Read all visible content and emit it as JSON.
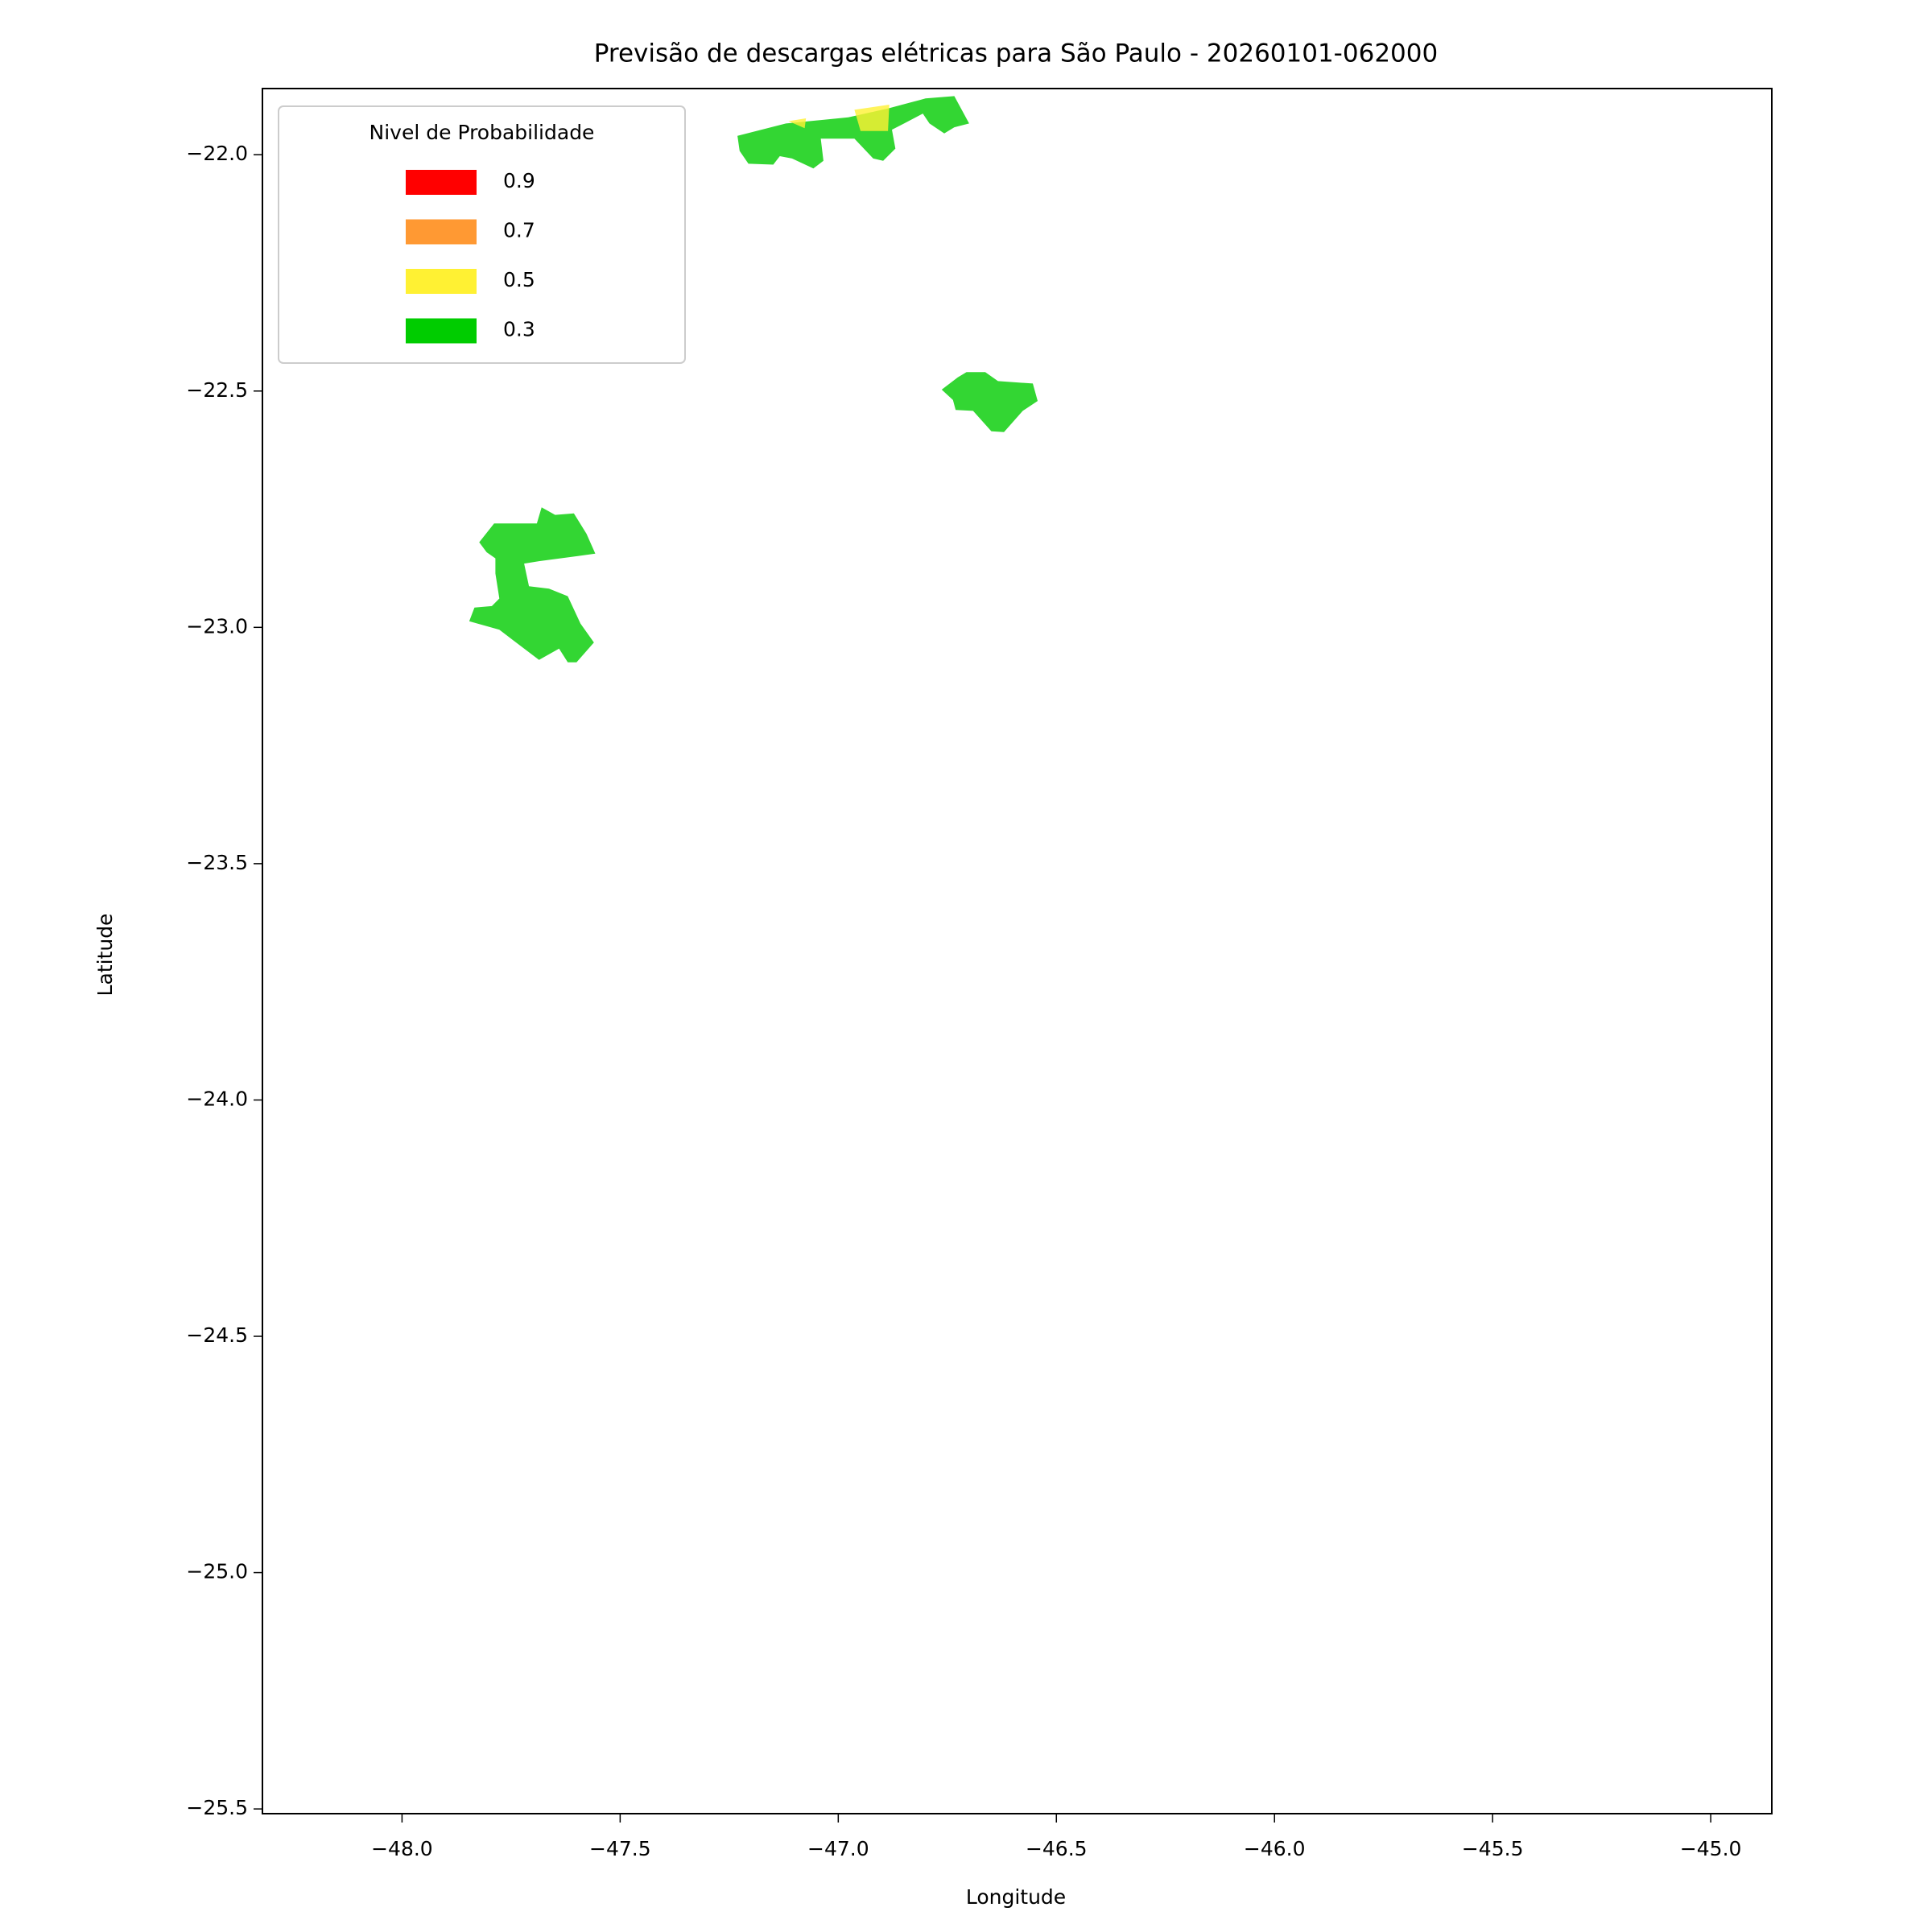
{
  "chart_data": {
    "type": "polygon",
    "title": "Previsão de descargas elétricas para São Paulo - 20260101-062000",
    "x_label": "Longitude",
    "y_label": "Latitude",
    "xlim": [
      -48.32,
      -44.86
    ],
    "ylim": [
      -25.51,
      -21.86
    ],
    "xticks": [
      {
        "value": -48,
        "label": "−48.0"
      },
      {
        "value": -47.5,
        "label": "−47.5"
      },
      {
        "value": -47,
        "label": "−47.0"
      },
      {
        "value": -46.5,
        "label": "−46.5"
      },
      {
        "value": -46,
        "label": "−46.0"
      },
      {
        "value": -45.5,
        "label": "−45.5"
      },
      {
        "value": -45,
        "label": "−45.0"
      }
    ],
    "yticks": [
      {
        "value": -22,
        "label": "−22.0"
      },
      {
        "value": -22.5,
        "label": "−22.5"
      },
      {
        "value": -23,
        "label": "−23.0"
      },
      {
        "value": -23.5,
        "label": "−23.5"
      },
      {
        "value": -24,
        "label": "−24.0"
      },
      {
        "value": -24.5,
        "label": "−24.5"
      },
      {
        "value": -25,
        "label": "−25.0"
      },
      {
        "value": -25.5,
        "label": "−25.5"
      }
    ],
    "legend_title": "Nivel de Probabilidade",
    "legend": "upper left",
    "fill_opacity": 0.8,
    "series": [
      {
        "name": "0.9",
        "color": "#ff0000",
        "polygons": []
      },
      {
        "name": "0.7",
        "color": "#ff9933",
        "polygons": []
      },
      {
        "name": "0.5",
        "color": "#fff133",
        "polygons": [
          {
            "lon": [
              -47.114,
              -47.077,
              -47.074
            ],
            "lat": [
              -21.929,
              -21.944,
              -21.923
            ]
          },
          {
            "lon": [
              -46.963,
              -46.883,
              -46.886,
              -46.949
            ],
            "lat": [
              -21.905,
              -21.894,
              -21.95,
              -21.95
            ]
          }
        ]
      },
      {
        "name": "0.3",
        "color": "#00cc00",
        "polygons": [
          {
            "lon": [
              -47.231,
              -47.12,
              -46.977,
              -46.886,
              -46.8,
              -46.734,
              -46.7,
              -46.734,
              -46.757,
              -46.791,
              -46.806,
              -46.849,
              -46.877,
              -46.869,
              -46.897,
              -46.92,
              -46.963,
              -47.04,
              -47.034,
              -47.057,
              -47.106,
              -47.134,
              -47.149,
              -47.206,
              -47.226
            ],
            "lat": [
              -21.96,
              -21.934,
              -21.921,
              -21.902,
              -21.881,
              -21.876,
              -21.934,
              -21.942,
              -21.955,
              -21.934,
              -21.913,
              -21.934,
              -21.947,
              -21.987,
              -22.013,
              -22.008,
              -21.966,
              -21.966,
              -22.013,
              -22.029,
              -22.008,
              -22.003,
              -22.021,
              -22.019,
              -21.992
            ]
          },
          {
            "lon": [
              -46.763,
              -46.726,
              -46.706,
              -46.663,
              -46.634,
              -46.554,
              -46.543,
              -46.577,
              -46.62,
              -46.649,
              -46.691,
              -46.731,
              -46.737
            ],
            "lat": [
              -22.497,
              -22.471,
              -22.46,
              -22.46,
              -22.479,
              -22.484,
              -22.521,
              -22.542,
              -22.587,
              -22.585,
              -22.542,
              -22.54,
              -22.519
            ]
          },
          {
            "lon": [
              -47.823,
              -47.789,
              -47.691,
              -47.68,
              -47.649,
              -47.606,
              -47.577,
              -47.557,
              -47.597,
              -47.686,
              -47.72,
              -47.709,
              -47.663,
              -47.62,
              -47.591,
              -47.56,
              -47.6,
              -47.62,
              -47.64,
              -47.686,
              -47.777,
              -47.846,
              -47.834,
              -47.794,
              -47.777,
              -47.786,
              -47.786,
              -47.806
            ],
            "lat": [
              -22.82,
              -22.78,
              -22.78,
              -22.746,
              -22.762,
              -22.759,
              -22.802,
              -22.844,
              -22.849,
              -22.86,
              -22.865,
              -22.913,
              -22.918,
              -22.934,
              -22.992,
              -23.032,
              -23.074,
              -23.074,
              -23.045,
              -23.069,
              -23.005,
              -22.987,
              -22.958,
              -22.955,
              -22.939,
              -22.886,
              -22.854,
              -22.841
            ]
          }
        ]
      }
    ]
  }
}
